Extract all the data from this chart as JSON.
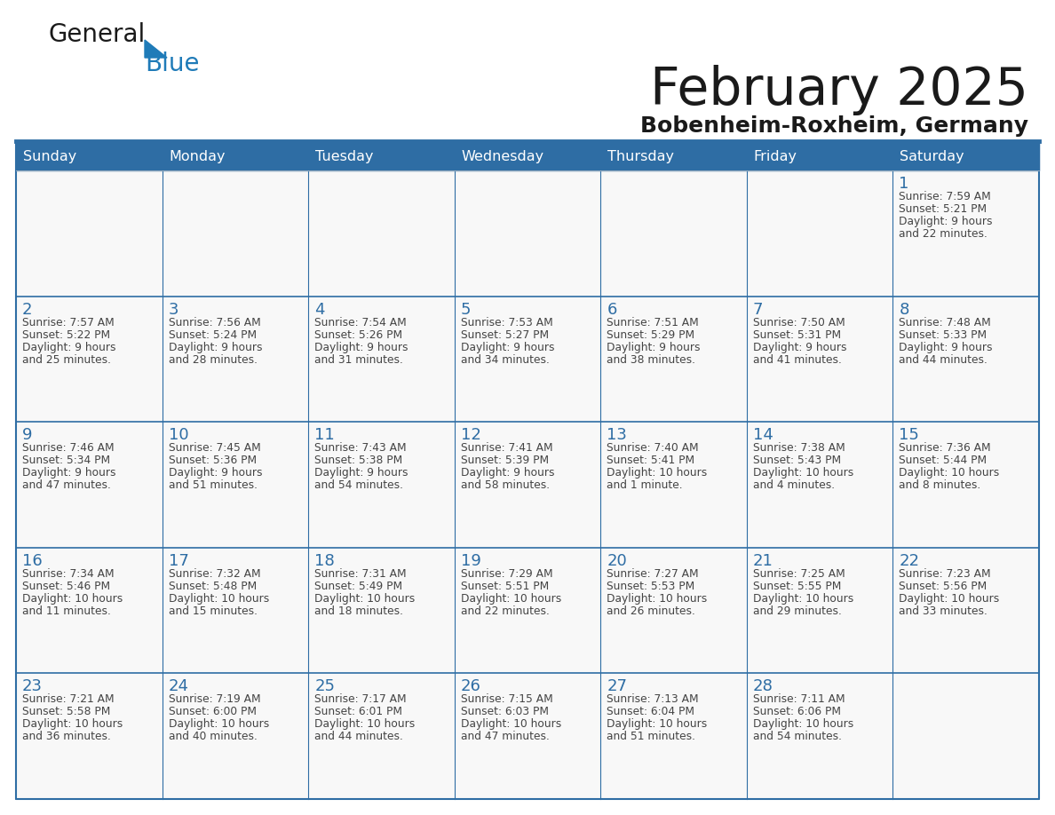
{
  "title": "February 2025",
  "subtitle": "Bobenheim-Roxheim, Germany",
  "header_bg": "#2E6DA4",
  "header_text": "#FFFFFF",
  "cell_bg": "#F8F8F8",
  "day_number_color": "#2E6DA4",
  "info_text_color": "#444444",
  "border_color": "#2E6DA4",
  "days_of_week": [
    "Sunday",
    "Monday",
    "Tuesday",
    "Wednesday",
    "Thursday",
    "Friday",
    "Saturday"
  ],
  "calendar_data": [
    [
      null,
      null,
      null,
      null,
      null,
      null,
      {
        "day": 1,
        "sunrise": "7:59 AM",
        "sunset": "5:21 PM",
        "daylight1": "9 hours",
        "daylight2": "and 22 minutes."
      }
    ],
    [
      {
        "day": 2,
        "sunrise": "7:57 AM",
        "sunset": "5:22 PM",
        "daylight1": "9 hours",
        "daylight2": "and 25 minutes."
      },
      {
        "day": 3,
        "sunrise": "7:56 AM",
        "sunset": "5:24 PM",
        "daylight1": "9 hours",
        "daylight2": "and 28 minutes."
      },
      {
        "day": 4,
        "sunrise": "7:54 AM",
        "sunset": "5:26 PM",
        "daylight1": "9 hours",
        "daylight2": "and 31 minutes."
      },
      {
        "day": 5,
        "sunrise": "7:53 AM",
        "sunset": "5:27 PM",
        "daylight1": "9 hours",
        "daylight2": "and 34 minutes."
      },
      {
        "day": 6,
        "sunrise": "7:51 AM",
        "sunset": "5:29 PM",
        "daylight1": "9 hours",
        "daylight2": "and 38 minutes."
      },
      {
        "day": 7,
        "sunrise": "7:50 AM",
        "sunset": "5:31 PM",
        "daylight1": "9 hours",
        "daylight2": "and 41 minutes."
      },
      {
        "day": 8,
        "sunrise": "7:48 AM",
        "sunset": "5:33 PM",
        "daylight1": "9 hours",
        "daylight2": "and 44 minutes."
      }
    ],
    [
      {
        "day": 9,
        "sunrise": "7:46 AM",
        "sunset": "5:34 PM",
        "daylight1": "9 hours",
        "daylight2": "and 47 minutes."
      },
      {
        "day": 10,
        "sunrise": "7:45 AM",
        "sunset": "5:36 PM",
        "daylight1": "9 hours",
        "daylight2": "and 51 minutes."
      },
      {
        "day": 11,
        "sunrise": "7:43 AM",
        "sunset": "5:38 PM",
        "daylight1": "9 hours",
        "daylight2": "and 54 minutes."
      },
      {
        "day": 12,
        "sunrise": "7:41 AM",
        "sunset": "5:39 PM",
        "daylight1": "9 hours",
        "daylight2": "and 58 minutes."
      },
      {
        "day": 13,
        "sunrise": "7:40 AM",
        "sunset": "5:41 PM",
        "daylight1": "10 hours",
        "daylight2": "and 1 minute."
      },
      {
        "day": 14,
        "sunrise": "7:38 AM",
        "sunset": "5:43 PM",
        "daylight1": "10 hours",
        "daylight2": "and 4 minutes."
      },
      {
        "day": 15,
        "sunrise": "7:36 AM",
        "sunset": "5:44 PM",
        "daylight1": "10 hours",
        "daylight2": "and 8 minutes."
      }
    ],
    [
      {
        "day": 16,
        "sunrise": "7:34 AM",
        "sunset": "5:46 PM",
        "daylight1": "10 hours",
        "daylight2": "and 11 minutes."
      },
      {
        "day": 17,
        "sunrise": "7:32 AM",
        "sunset": "5:48 PM",
        "daylight1": "10 hours",
        "daylight2": "and 15 minutes."
      },
      {
        "day": 18,
        "sunrise": "7:31 AM",
        "sunset": "5:49 PM",
        "daylight1": "10 hours",
        "daylight2": "and 18 minutes."
      },
      {
        "day": 19,
        "sunrise": "7:29 AM",
        "sunset": "5:51 PM",
        "daylight1": "10 hours",
        "daylight2": "and 22 minutes."
      },
      {
        "day": 20,
        "sunrise": "7:27 AM",
        "sunset": "5:53 PM",
        "daylight1": "10 hours",
        "daylight2": "and 26 minutes."
      },
      {
        "day": 21,
        "sunrise": "7:25 AM",
        "sunset": "5:55 PM",
        "daylight1": "10 hours",
        "daylight2": "and 29 minutes."
      },
      {
        "day": 22,
        "sunrise": "7:23 AM",
        "sunset": "5:56 PM",
        "daylight1": "10 hours",
        "daylight2": "and 33 minutes."
      }
    ],
    [
      {
        "day": 23,
        "sunrise": "7:21 AM",
        "sunset": "5:58 PM",
        "daylight1": "10 hours",
        "daylight2": "and 36 minutes."
      },
      {
        "day": 24,
        "sunrise": "7:19 AM",
        "sunset": "6:00 PM",
        "daylight1": "10 hours",
        "daylight2": "and 40 minutes."
      },
      {
        "day": 25,
        "sunrise": "7:17 AM",
        "sunset": "6:01 PM",
        "daylight1": "10 hours",
        "daylight2": "and 44 minutes."
      },
      {
        "day": 26,
        "sunrise": "7:15 AM",
        "sunset": "6:03 PM",
        "daylight1": "10 hours",
        "daylight2": "and 47 minutes."
      },
      {
        "day": 27,
        "sunrise": "7:13 AM",
        "sunset": "6:04 PM",
        "daylight1": "10 hours",
        "daylight2": "and 51 minutes."
      },
      {
        "day": 28,
        "sunrise": "7:11 AM",
        "sunset": "6:06 PM",
        "daylight1": "10 hours",
        "daylight2": "and 54 minutes."
      },
      null
    ]
  ]
}
